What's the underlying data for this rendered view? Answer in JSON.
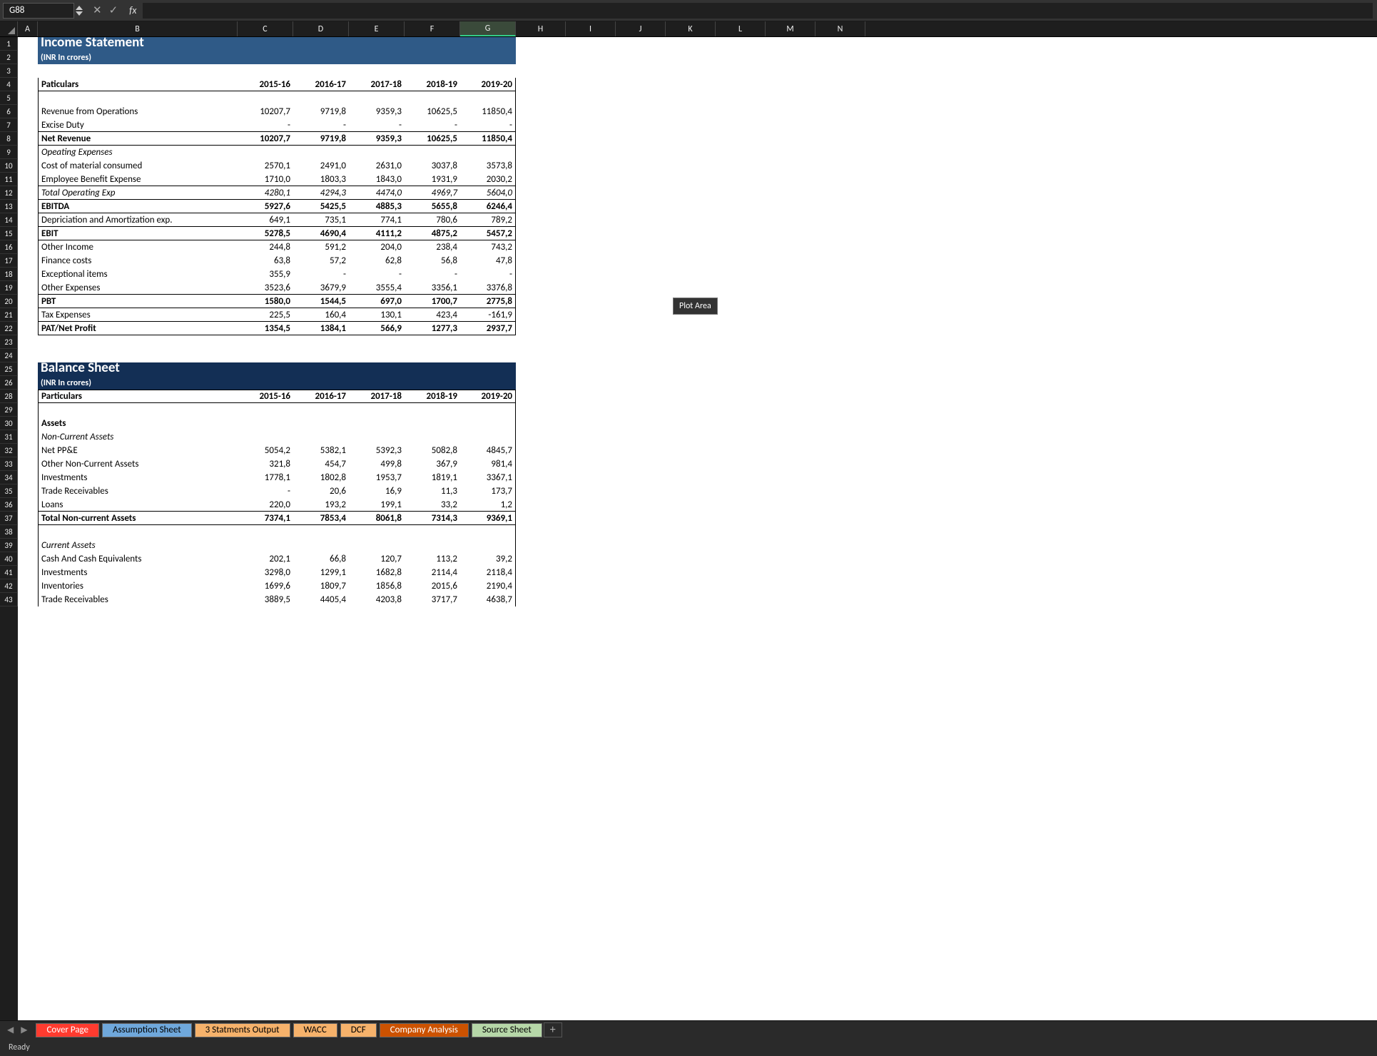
{
  "nameBox": "G88",
  "formula": "",
  "status": "Ready",
  "plotTip": "Plot Area",
  "colWidths": {
    "A": 28,
    "B": 280,
    "C": 78,
    "D": 78,
    "E": 78,
    "F": 78,
    "G": 78,
    "rest": 70
  },
  "columns": [
    "A",
    "B",
    "C",
    "D",
    "E",
    "F",
    "G",
    "H",
    "I",
    "J",
    "K",
    "L",
    "M",
    "N"
  ],
  "activeCol": "G",
  "rowCount": 43,
  "skipRow": 27,
  "tabs": [
    {
      "label": "Cover Page",
      "bg": "#ff3b2f",
      "fg": "#ffffff"
    },
    {
      "label": "Assumption Sheet",
      "bg": "#6fa8dc",
      "fg": "#000000"
    },
    {
      "label": "3 Statments Output",
      "bg": "#f6b26b",
      "fg": "#000000"
    },
    {
      "label": "WACC",
      "bg": "#f6b26b",
      "fg": "#000000"
    },
    {
      "label": "DCF",
      "bg": "#f6b26b",
      "fg": "#000000"
    },
    {
      "label": "Company Analysis",
      "bg": "#cc5200",
      "fg": "#ffffff"
    },
    {
      "label": "Source Sheet",
      "bg": "#b6d7a8",
      "fg": "#000000"
    }
  ],
  "rows": {
    "1": {
      "type": "title",
      "text": "Income Statement",
      "band": 1
    },
    "2": {
      "type": "subtitle",
      "text": "(INR In crores)",
      "band": 1
    },
    "3": {
      "type": "blank"
    },
    "4": {
      "type": "head",
      "label": "Paticulars",
      "vals": [
        "2015-16",
        "2016-17",
        "2017-18",
        "2018-19",
        "2019-20"
      ],
      "bold": true,
      "bb": true
    },
    "5": {
      "type": "blankBordered"
    },
    "6": {
      "type": "data",
      "label": "Revenue from Operations",
      "vals": [
        "10207,7",
        "9719,8",
        "9359,3",
        "10625,5",
        "11850,4"
      ]
    },
    "7": {
      "type": "data",
      "label": "Excise Duty",
      "vals": [
        "-",
        "-",
        "-",
        "-",
        "-"
      ],
      "bb": true
    },
    "8": {
      "type": "data",
      "label": "Net Revenue",
      "vals": [
        "10207,7",
        "9719,8",
        "9359,3",
        "10625,5",
        "11850,4"
      ],
      "bold": true,
      "bb": true
    },
    "9": {
      "type": "data",
      "label": "Opeating Expenses",
      "ital": true,
      "vals": [
        "",
        "",
        "",
        "",
        ""
      ]
    },
    "10": {
      "type": "data",
      "label": "Cost of material consumed",
      "vals": [
        "2570,1",
        "2491,0",
        "2631,0",
        "3037,8",
        "3573,8"
      ]
    },
    "11": {
      "type": "data",
      "label": "Employee Benefit Expense",
      "vals": [
        "1710,0",
        "1803,3",
        "1843,0",
        "1931,9",
        "2030,2"
      ],
      "bb": true
    },
    "12": {
      "type": "data",
      "label": "Total Operating Exp",
      "vals": [
        "4280,1",
        "4294,3",
        "4474,0",
        "4969,7",
        "5604,0"
      ],
      "ital": true,
      "bb": true
    },
    "13": {
      "type": "data",
      "label": "EBITDA",
      "vals": [
        "5927,6",
        "5425,5",
        "4885,3",
        "5655,8",
        "6246,4"
      ],
      "bold": true,
      "bb": true
    },
    "14": {
      "type": "data",
      "label": "Depriciation and Amortization exp.",
      "vals": [
        "649,1",
        "735,1",
        "774,1",
        "780,6",
        "789,2"
      ],
      "bb": true
    },
    "15": {
      "type": "data",
      "label": "EBIT",
      "vals": [
        "5278,5",
        "4690,4",
        "4111,2",
        "4875,2",
        "5457,2"
      ],
      "bold": true,
      "bb": true
    },
    "16": {
      "type": "data",
      "label": "Other Income",
      "vals": [
        "244,8",
        "591,2",
        "204,0",
        "238,4",
        "743,2"
      ]
    },
    "17": {
      "type": "data",
      "label": "Finance costs",
      "vals": [
        "63,8",
        "57,2",
        "62,8",
        "56,8",
        "47,8"
      ]
    },
    "18": {
      "type": "data",
      "label": "Exceptional items",
      "vals": [
        "355,9",
        "-",
        "-",
        "-",
        "-"
      ]
    },
    "19": {
      "type": "data",
      "label": "Other Expenses",
      "vals": [
        "3523,6",
        "3679,9",
        "3555,4",
        "3356,1",
        "3376,8"
      ],
      "bb": true
    },
    "20": {
      "type": "data",
      "label": "PBT",
      "vals": [
        "1580,0",
        "1544,5",
        "697,0",
        "1700,7",
        "2775,8"
      ],
      "bold": true,
      "bb": true
    },
    "21": {
      "type": "data",
      "label": "Tax Expenses",
      "vals": [
        "225,5",
        "160,4",
        "130,1",
        "423,4",
        "-161,9"
      ],
      "bb": true
    },
    "22": {
      "type": "data",
      "label": "PAT/Net Profit",
      "vals": [
        "1354,5",
        "1384,1",
        "566,9",
        "1277,3",
        "2937,7"
      ],
      "bold": true,
      "bb": true
    },
    "23": {
      "type": "blank"
    },
    "24": {
      "type": "blank"
    },
    "25": {
      "type": "title",
      "text": "Balance Sheet",
      "band": 2
    },
    "26": {
      "type": "subtitle",
      "text": "(INR In crores)",
      "band": 2
    },
    "28": {
      "type": "head",
      "label": "Particulars",
      "vals": [
        "2015-16",
        "2016-17",
        "2017-18",
        "2018-19",
        "2019-20"
      ],
      "bold": true,
      "bt": true,
      "bb": true
    },
    "29": {
      "type": "blankBordered"
    },
    "30": {
      "type": "data",
      "label": "Assets",
      "vals": [
        "",
        "",
        "",
        "",
        ""
      ],
      "bold": true
    },
    "31": {
      "type": "data",
      "label": "Non-Current Assets",
      "vals": [
        "",
        "",
        "",
        "",
        ""
      ],
      "ital": true
    },
    "32": {
      "type": "data",
      "label": "Net PP&E",
      "vals": [
        "5054,2",
        "5382,1",
        "5392,3",
        "5082,8",
        "4845,7"
      ]
    },
    "33": {
      "type": "data",
      "label": "Other Non-Current Assets",
      "vals": [
        "321,8",
        "454,7",
        "499,8",
        "367,9",
        "981,4"
      ]
    },
    "34": {
      "type": "data",
      "label": "Investments",
      "vals": [
        "1778,1",
        "1802,8",
        "1953,7",
        "1819,1",
        "3367,1"
      ]
    },
    "35": {
      "type": "data",
      "label": "Trade Receivables",
      "vals": [
        "-",
        "20,6",
        "16,9",
        "11,3",
        "173,7"
      ]
    },
    "36": {
      "type": "data",
      "label": "Loans",
      "vals": [
        "220,0",
        "193,2",
        "199,1",
        "33,2",
        "1,2"
      ],
      "bb": true
    },
    "37": {
      "type": "data",
      "label": "Total Non-current Assets",
      "vals": [
        "7374,1",
        "7853,4",
        "8061,8",
        "7314,3",
        "9369,1"
      ],
      "bold": true,
      "bb": true
    },
    "38": {
      "type": "blankBordered"
    },
    "39": {
      "type": "data",
      "label": "Current Assets",
      "vals": [
        "",
        "",
        "",
        "",
        ""
      ],
      "ital": true
    },
    "40": {
      "type": "data",
      "label": "Cash And Cash Equivalents",
      "vals": [
        "202,1",
        "66,8",
        "120,7",
        "113,2",
        "39,2"
      ]
    },
    "41": {
      "type": "data",
      "label": "Investments",
      "vals": [
        "3298,0",
        "1299,1",
        "1682,8",
        "2114,4",
        "2118,4"
      ]
    },
    "42": {
      "type": "data",
      "label": "Inventories",
      "vals": [
        "1699,6",
        "1809,7",
        "1856,8",
        "2015,6",
        "2190,4"
      ]
    },
    "43": {
      "type": "data",
      "label": "Trade Receivables",
      "vals": [
        "3889,5",
        "4405,4",
        "4203,8",
        "3717,7",
        "4638,7"
      ]
    }
  }
}
